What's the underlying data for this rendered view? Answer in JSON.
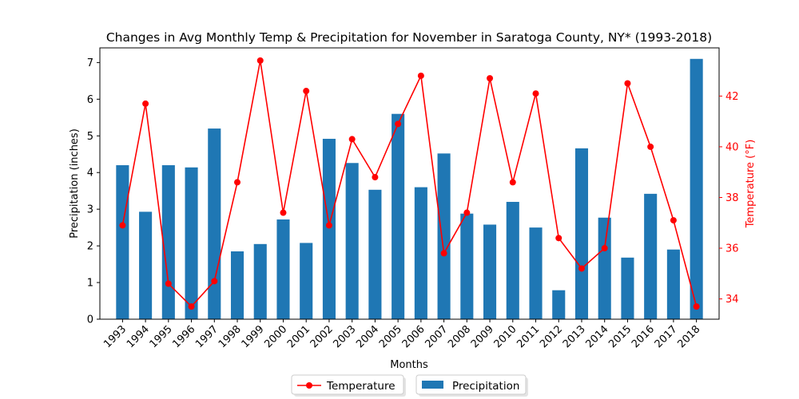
{
  "chart_data": {
    "type": "bar",
    "title": "Changes in Avg Monthly Temp & Precipitation for November in Saratoga County, NY* (1993-2018)",
    "xlabel": "Months",
    "ylabel": "Precipitation (inches)",
    "y2label": "Temperature (°F)",
    "categories": [
      "1993",
      "1994",
      "1995",
      "1996",
      "1997",
      "1998",
      "1999",
      "2000",
      "2001",
      "2002",
      "2003",
      "2004",
      "2005",
      "2006",
      "2007",
      "2008",
      "2009",
      "2010",
      "2011",
      "2012",
      "2013",
      "2014",
      "2015",
      "2016",
      "2017",
      "2018"
    ],
    "ylim": [
      0,
      7.4
    ],
    "y2lim": [
      33.2,
      43.9
    ],
    "yticks": [
      0,
      1,
      2,
      3,
      4,
      5,
      6,
      7
    ],
    "y2ticks": [
      34,
      36,
      38,
      40,
      42
    ],
    "grid": false,
    "legend_position": "bottom-center",
    "series": [
      {
        "name": "Precipitation",
        "type": "bar",
        "axis": "left",
        "color": "#1f77b4",
        "values": [
          4.2,
          2.93,
          4.2,
          4.14,
          5.2,
          1.85,
          2.05,
          2.72,
          2.08,
          4.92,
          4.26,
          3.53,
          5.6,
          3.6,
          4.52,
          2.88,
          2.58,
          3.2,
          2.5,
          0.79,
          4.66,
          2.77,
          1.68,
          3.42,
          1.9,
          7.1
        ]
      },
      {
        "name": "Temperature",
        "type": "line",
        "axis": "right",
        "color": "#ff0000",
        "values": [
          36.9,
          41.7,
          34.6,
          33.7,
          34.7,
          38.6,
          43.4,
          37.4,
          42.2,
          36.9,
          40.3,
          38.8,
          40.9,
          42.8,
          35.8,
          37.4,
          42.7,
          38.6,
          42.1,
          36.4,
          35.2,
          36.0,
          42.5,
          40.0,
          37.1,
          33.7
        ]
      }
    ]
  }
}
